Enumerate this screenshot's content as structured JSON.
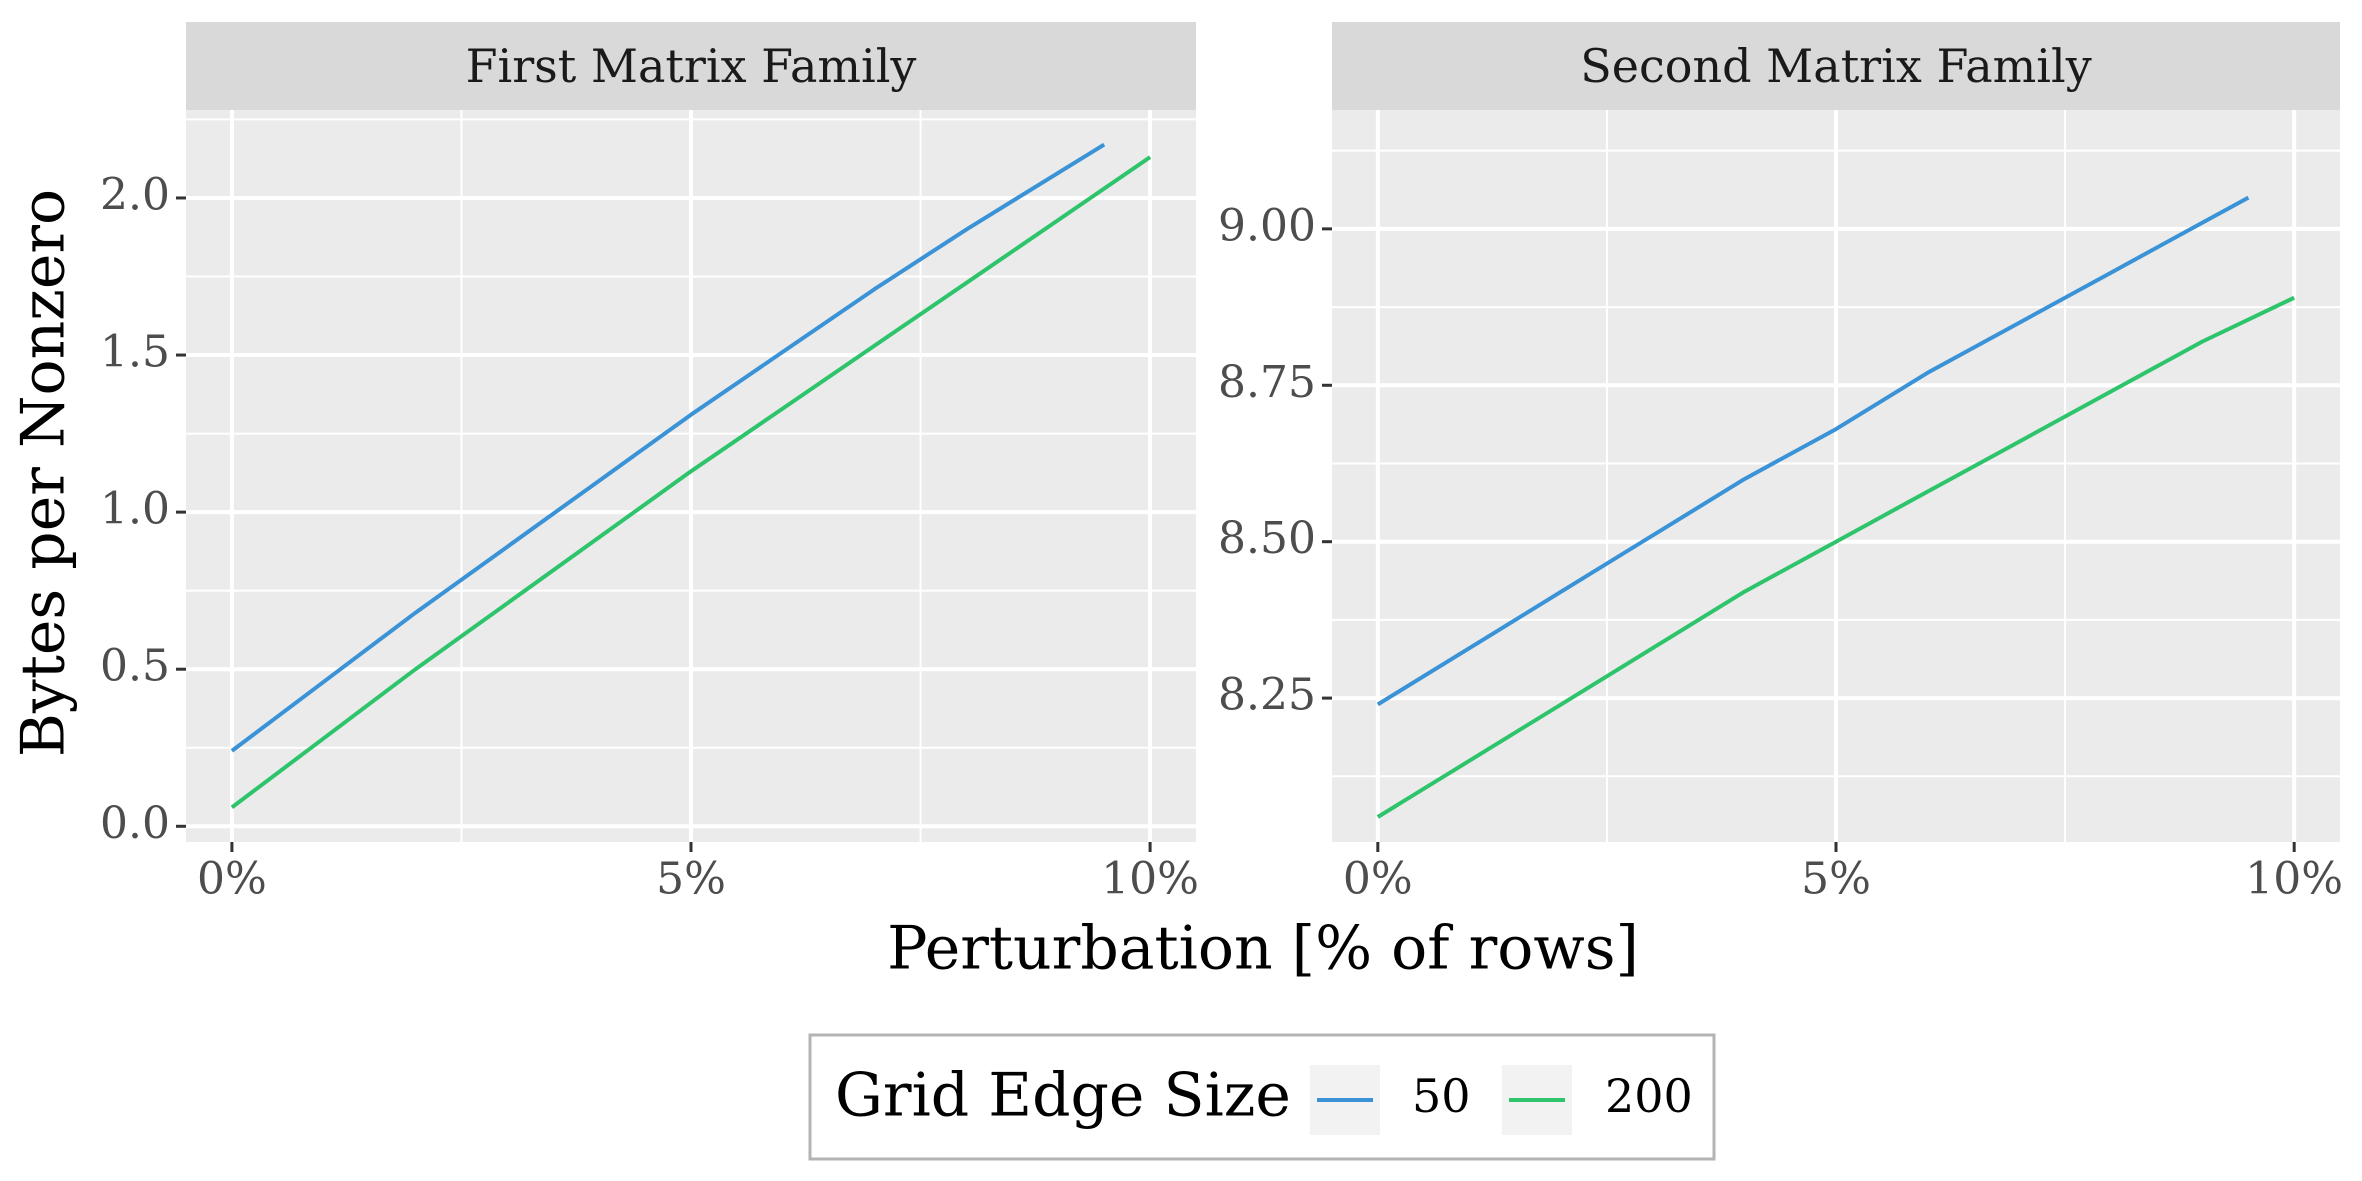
{
  "chart_data": {
    "type": "line",
    "xlabel": "Perturbation [% of rows]",
    "ylabel": "Bytes per Nonzero",
    "x_ticks": [
      0,
      5,
      10
    ],
    "x_tick_labels": [
      "0%",
      "5%",
      "10%"
    ],
    "xlim": [
      -0.5,
      10.5
    ],
    "grid": true,
    "legend": {
      "title": "Grid Edge Size",
      "position": "bottom",
      "entries": [
        {
          "label": "50",
          "color": "#3a92d7"
        },
        {
          "label": "200",
          "color": "#2ec46b"
        }
      ]
    },
    "panels": [
      {
        "title": "First Matrix Family",
        "ylim": [
          -0.05,
          2.28
        ],
        "y_ticks": [
          0.0,
          0.5,
          1.0,
          1.5,
          2.0
        ],
        "y_tick_labels": [
          "0.0",
          "0.5",
          "1.0",
          "1.5",
          "2.0"
        ],
        "series": [
          {
            "name": "50",
            "color": "#3a92d7",
            "x": [
              0,
              1,
              2,
              3,
              4,
              5,
              6,
              7,
              8,
              9,
              9.5
            ],
            "y": [
              0.24,
              0.46,
              0.68,
              0.89,
              1.1,
              1.31,
              1.51,
              1.71,
              1.9,
              2.08,
              2.17
            ]
          },
          {
            "name": "200",
            "color": "#2ec46b",
            "x": [
              0,
              1,
              2,
              3,
              4,
              5,
              6,
              7,
              8,
              9,
              10
            ],
            "y": [
              0.06,
              0.28,
              0.5,
              0.71,
              0.92,
              1.13,
              1.33,
              1.53,
              1.73,
              1.93,
              2.13
            ]
          }
        ]
      },
      {
        "title": "Second Matrix Family",
        "ylim": [
          8.02,
          9.19
        ],
        "y_ticks": [
          8.25,
          8.5,
          8.75,
          9.0
        ],
        "y_tick_labels": [
          "8.25",
          "8.50",
          "8.75",
          "9.00"
        ],
        "series": [
          {
            "name": "50",
            "color": "#3a92d7",
            "x": [
              0,
              1,
              2,
              3,
              4,
              5,
              6,
              7,
              8,
              9,
              9.5
            ],
            "y": [
              8.24,
              8.33,
              8.42,
              8.51,
              8.6,
              8.68,
              8.77,
              8.85,
              8.93,
              9.01,
              9.05
            ]
          },
          {
            "name": "200",
            "color": "#2ec46b",
            "x": [
              0,
              1,
              2,
              3,
              4,
              5,
              6,
              7,
              8,
              9,
              10
            ],
            "y": [
              8.06,
              8.15,
              8.24,
              8.33,
              8.42,
              8.5,
              8.58,
              8.66,
              8.74,
              8.82,
              8.89
            ]
          }
        ]
      }
    ]
  }
}
